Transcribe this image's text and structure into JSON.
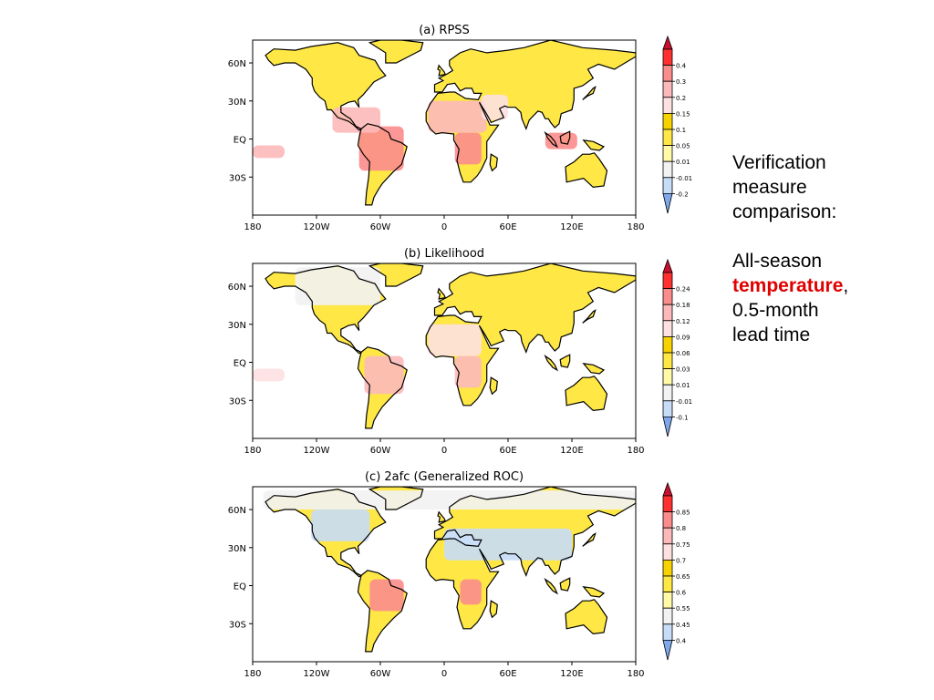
{
  "side_text": {
    "line1": "Verification",
    "line2": "measure",
    "line3": "comparison:",
    "line4": "All-season",
    "highlight": "temperature",
    "highlight_suffix": ",",
    "line5": "0.5-month",
    "line6": "lead time",
    "highlight_color": "#e00000"
  },
  "x_ticks": [
    "180",
    "120W",
    "60W",
    "0",
    "60E",
    "120E",
    "180"
  ],
  "y_ticks": [
    "60N",
    "30N",
    "EQ",
    "30S"
  ],
  "panels": [
    {
      "title": "(a)  RPSS",
      "colorbar": {
        "labels": [
          "0.4",
          "0.3",
          "0.2",
          "0.15",
          "0.1",
          "0.05",
          "0.01",
          "-0.01",
          "-0.2"
        ],
        "colors": [
          "#ff3030",
          "#fb8c8c",
          "#fcb9b9",
          "#fde0e0",
          "#f5d200",
          "#ffe845",
          "#fff9a8",
          "#f2f2f2",
          "#c6dcf7",
          "#7fa8ec"
        ],
        "top_color": "#c8102e"
      },
      "regions": [
        {
          "name": "northern south america",
          "lon": [
            -80,
            -38
          ],
          "lat": [
            -25,
            10
          ],
          "level": 1
        },
        {
          "name": "central africa",
          "lon": [
            10,
            35
          ],
          "lat": [
            -20,
            5
          ],
          "level": 1
        },
        {
          "name": "indonesia",
          "lon": [
            95,
            125
          ],
          "lat": [
            -8,
            5
          ],
          "level": 1
        },
        {
          "name": "sahara",
          "lon": [
            -15,
            40
          ],
          "lat": [
            5,
            30
          ],
          "level": 2
        },
        {
          "name": "central america",
          "lon": [
            -105,
            -60
          ],
          "lat": [
            5,
            25
          ],
          "level": 2
        },
        {
          "name": "middle east",
          "lon": [
            35,
            60
          ],
          "lat": [
            15,
            35
          ],
          "level": 3
        },
        {
          "name": "east pacific",
          "lon": [
            -180,
            -150
          ],
          "lat": [
            -15,
            -5
          ],
          "level": 2
        }
      ]
    },
    {
      "title": "(b)  Likelihood",
      "colorbar": {
        "labels": [
          "0.24",
          "0.18",
          "0.12",
          "0.09",
          "0.06",
          "0.03",
          "0.01",
          "-0.01",
          "-0.1"
        ],
        "colors": [
          "#ff3030",
          "#fb8c8c",
          "#fcb9b9",
          "#fde0e0",
          "#f5d200",
          "#ffe845",
          "#fff9a8",
          "#f2f2f2",
          "#c6dcf7",
          "#7fa8ec"
        ],
        "top_color": "#c8102e"
      },
      "regions": [
        {
          "name": "brazil",
          "lon": [
            -75,
            -38
          ],
          "lat": [
            -25,
            5
          ],
          "level": 2
        },
        {
          "name": "central africa",
          "lon": [
            10,
            35
          ],
          "lat": [
            -20,
            5
          ],
          "level": 2
        },
        {
          "name": "sahara",
          "lon": [
            -15,
            35
          ],
          "lat": [
            5,
            30
          ],
          "level": 3
        },
        {
          "name": "canada arctic",
          "lon": [
            -140,
            -60
          ],
          "lat": [
            45,
            75
          ],
          "level": 7
        },
        {
          "name": "east pacific",
          "lon": [
            -180,
            -150
          ],
          "lat": [
            -15,
            -5
          ],
          "level": 3
        }
      ]
    },
    {
      "title": "(c)  2afc  (Generalized  ROC)",
      "colorbar": {
        "labels": [
          "0.85",
          "0.8",
          "0.75",
          "0.7",
          "0.65",
          "0.6",
          "0.55",
          "0.45",
          "0.4"
        ],
        "colors": [
          "#ff3030",
          "#fb8c8c",
          "#fcb9b9",
          "#fde0e0",
          "#f5d200",
          "#ffe845",
          "#fff9a8",
          "#f2f2f2",
          "#c6dcf7",
          "#7fa8ec"
        ],
        "top_color": "#c8102e"
      },
      "regions": [
        {
          "name": "brazil",
          "lon": [
            -70,
            -38
          ],
          "lat": [
            -20,
            5
          ],
          "level": 1
        },
        {
          "name": "central africa",
          "lon": [
            15,
            35
          ],
          "lat": [
            -15,
            5
          ],
          "level": 1
        },
        {
          "name": "north africa middle east",
          "lon": [
            0,
            120
          ],
          "lat": [
            20,
            45
          ],
          "level": 8
        },
        {
          "name": "north america interior",
          "lon": [
            -125,
            -70
          ],
          "lat": [
            35,
            60
          ],
          "level": 8
        },
        {
          "name": "arctic",
          "lon": [
            -170,
            180
          ],
          "lat": [
            60,
            75
          ],
          "level": 7
        }
      ]
    }
  ]
}
